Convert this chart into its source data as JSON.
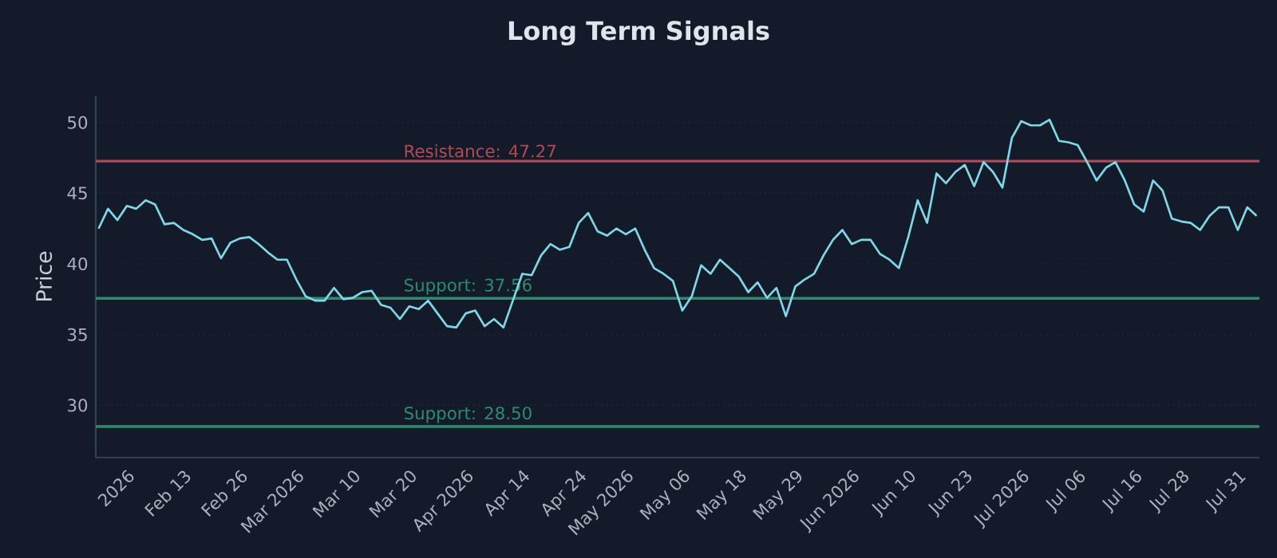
{
  "chart_data": {
    "type": "line",
    "title": "Long Term Signals",
    "ylabel": "Price",
    "categories": [
      null,
      null,
      null,
      "2026",
      null,
      null,
      null,
      null,
      null,
      "Feb 13",
      null,
      null,
      null,
      null,
      null,
      "Feb 26",
      null,
      null,
      null,
      null,
      null,
      "Mar 2026",
      null,
      null,
      null,
      null,
      null,
      "Mar 10",
      null,
      null,
      null,
      null,
      null,
      "Mar 20",
      null,
      null,
      null,
      null,
      null,
      "Apr 2026",
      null,
      null,
      null,
      null,
      null,
      "Apr 14",
      null,
      null,
      null,
      null,
      null,
      "Apr 24",
      null,
      null,
      null,
      null,
      "May 2026",
      null,
      null,
      null,
      null,
      null,
      "May 06",
      null,
      null,
      null,
      null,
      null,
      "May 18",
      null,
      null,
      null,
      null,
      null,
      "May 29",
      null,
      null,
      null,
      null,
      null,
      "Jun 2026",
      null,
      null,
      null,
      null,
      null,
      "Jun 10",
      null,
      null,
      null,
      null,
      null,
      "Jun 23",
      null,
      null,
      null,
      null,
      null,
      "Jul 2026",
      null,
      null,
      null,
      null,
      null,
      "Jul 06",
      null,
      null,
      null,
      null,
      null,
      "Jul 16",
      null,
      null,
      null,
      null,
      "Jul 28",
      null,
      null,
      null,
      null,
      null,
      "Jul 31",
      null,
      null
    ],
    "series": [
      {
        "color": "#7fd8e8",
        "values": [
          42.5,
          43.9,
          43.1,
          44.1,
          43.9,
          44.5,
          44.2,
          42.8,
          42.9,
          42.4,
          42.1,
          41.7,
          41.8,
          40.4,
          41.5,
          41.8,
          41.9,
          41.4,
          40.8,
          40.3,
          40.3,
          38.9,
          37.7,
          37.4,
          37.4,
          38.3,
          37.5,
          37.6,
          38.0,
          38.1,
          37.1,
          36.9,
          36.1,
          37.0,
          36.8,
          37.4,
          36.5,
          35.6,
          35.5,
          36.5,
          36.7,
          35.6,
          36.1,
          35.5,
          37.4,
          39.3,
          39.2,
          40.6,
          41.4,
          41.0,
          41.2,
          42.9,
          43.6,
          42.3,
          42.0,
          42.5,
          42.1,
          42.5,
          41.0,
          39.7,
          39.3,
          38.8,
          36.7,
          37.7,
          39.9,
          39.3,
          40.3,
          39.7,
          39.1,
          38.0,
          38.7,
          37.6,
          38.3,
          36.3,
          38.4,
          38.9,
          39.3,
          40.6,
          41.7,
          42.4,
          41.4,
          41.7,
          41.7,
          40.7,
          40.3,
          39.7,
          41.9,
          44.5,
          42.9,
          46.4,
          45.7,
          46.5,
          47.0,
          45.5,
          47.2,
          46.5,
          45.4,
          48.9,
          50.1,
          49.8,
          49.8,
          50.2,
          48.7,
          48.6,
          48.4,
          47.2,
          45.9,
          46.8,
          47.2,
          45.9,
          44.2,
          43.7,
          45.9,
          45.2,
          43.2,
          43.0,
          42.9,
          42.4,
          43.4,
          44.0,
          44.0,
          42.4,
          44.0,
          43.4
        ]
      }
    ],
    "ylim": [
      26.3,
      51.9
    ],
    "yticks": [
      30,
      35,
      40,
      45,
      50
    ],
    "grid": "y",
    "marker": "none",
    "line_style": "solid",
    "ref_lines": [
      {
        "axis": "y",
        "value": 47.27,
        "label": "Resistance: 47.27",
        "color": "#b04a55"
      },
      {
        "axis": "y",
        "value": 37.56,
        "label": "Support: 37.56",
        "color": "#2e8b6e"
      },
      {
        "axis": "y",
        "value": 28.5,
        "label": "Support: 28.50",
        "color": "#2e8b6e"
      }
    ]
  }
}
